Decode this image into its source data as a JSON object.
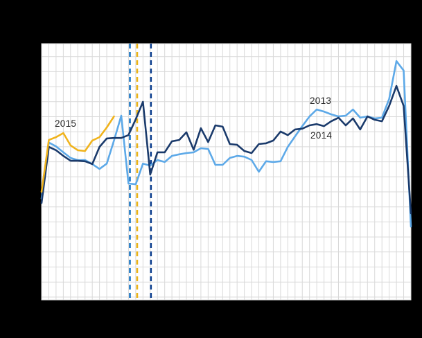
{
  "chart_data": {
    "type": "line",
    "title": "",
    "xlabel": "",
    "ylabel": "",
    "x_unit": "week",
    "n_weeks": 52,
    "note": "No axis tick labels visible in image; values are an index scale 0-100 of plot height read from pixels",
    "background_color": "#000000",
    "plot_background": "#ffffff",
    "grid_color": "#d9d9d9",
    "grid": true,
    "legend_position": "inline-labels",
    "label_color": "#262626",
    "series": [
      {
        "name": "2013",
        "color": "#5da9e8",
        "start_week": 1,
        "values": [
          39.5,
          61.4,
          59.9,
          57.6,
          55.4,
          54.5,
          54.6,
          53.0,
          51.1,
          53.2,
          62.2,
          71.9,
          45.4,
          45.1,
          53.2,
          52.4,
          54.6,
          53.8,
          56.2,
          56.8,
          57.3,
          57.6,
          59.2,
          58.9,
          52.7,
          52.7,
          55.4,
          56.2,
          55.9,
          54.6,
          50.0,
          54.1,
          53.8,
          54.1,
          59.7,
          63.8,
          67.8,
          71.6,
          74.3,
          73.5,
          72.4,
          71.6,
          71.9,
          74.3,
          71.1,
          71.6,
          70.8,
          71.1,
          78.4,
          93.2,
          89.5,
          28.6
        ]
      },
      {
        "name": "2014",
        "color": "#1a3a6b",
        "start_week": 1,
        "values": [
          37.8,
          59.7,
          58.4,
          56.2,
          54.3,
          54.3,
          54.1,
          53.0,
          59.7,
          63.0,
          63.2,
          63.2,
          64.3,
          70.5,
          77.3,
          48.9,
          57.6,
          57.6,
          61.9,
          62.4,
          65.4,
          58.6,
          67.0,
          61.6,
          68.1,
          67.6,
          60.8,
          60.5,
          58.1,
          57.3,
          60.8,
          61.1,
          62.2,
          65.7,
          64.3,
          66.5,
          66.8,
          68.1,
          68.6,
          67.8,
          69.7,
          71.1,
          68.1,
          70.8,
          66.5,
          71.6,
          70.3,
          69.7,
          75.7,
          83.5,
          75.7,
          33.8
        ]
      },
      {
        "name": "2015",
        "color": "#f0b31c",
        "start_week": 1,
        "values": [
          42.2,
          62.4,
          63.5,
          65.1,
          60.3,
          58.4,
          58.1,
          62.2,
          63.5,
          67.3,
          71.6
        ]
      }
    ],
    "easter_markers": [
      {
        "year": "2013",
        "week": 13.2,
        "color": "#1b75c3"
      },
      {
        "year": "2015",
        "week": 14.2,
        "color": "#ebb315"
      },
      {
        "year": "2014",
        "week": 16.1,
        "color": "#0d3f8f"
      }
    ],
    "labels": [
      {
        "text": "2013",
        "x": 447,
        "y": 138
      },
      {
        "text": "2014",
        "x": 448,
        "y": 188
      },
      {
        "text": "2015",
        "x": 79,
        "y": 171
      }
    ]
  }
}
